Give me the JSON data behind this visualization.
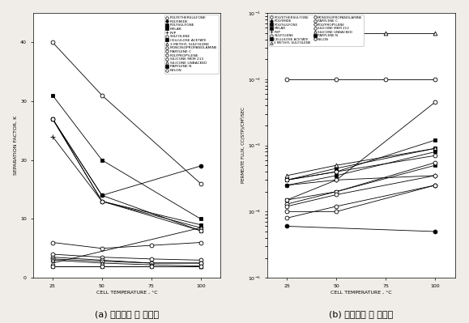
{
  "title_a": "(a) 혼합가스 중 선택도",
  "title_b": "(b) 혼합가스 중 투과도",
  "xlabel": "CELL TEMPERATURE , °C",
  "ylabel_a": "SEPARATION FACTOR, K",
  "ylabel_b": "PERMEATE FLUX, CC(STP)/CM²/SEC",
  "x_ticks": [
    25,
    50,
    75,
    100
  ],
  "x_range": [
    15,
    110
  ],
  "bg_color": "#f0ede8",
  "legend_a": [
    "POLYETHERSULFONE",
    "POLYIMIDE",
    "POLYSULFONE",
    "MYLAR",
    "PVP",
    "SULFOLENE",
    "CELLULOSE ACETATE",
    "3 METHYL SULFOLENE",
    "MONOISOPROPANOLAMINE",
    "PARYLENE C",
    "POLYPROPYLENE",
    "SILICONE MEM 213",
    "SILICONE UNBACKED",
    "PARYLENE N",
    "NYLON"
  ],
  "series_a": {
    "POLYETHERSULFONE": {
      "x": [
        25,
        50,
        100
      ],
      "y": [
        40,
        31,
        16
      ],
      "marker": "o",
      "filled": false
    },
    "POLYIMIDE": {
      "x": [
        25,
        50,
        100
      ],
      "y": [
        27,
        14,
        19
      ],
      "marker": "o",
      "filled": true
    },
    "POLYSULFONE": {
      "x": [
        25,
        50,
        100
      ],
      "y": [
        27,
        14,
        8
      ],
      "marker": "s",
      "filled": true
    },
    "MYLAR": {
      "x": [
        25,
        50,
        100
      ],
      "y": [
        31,
        20,
        10
      ],
      "marker": "s",
      "filled": true
    },
    "PVP": {
      "x": [
        25,
        50,
        100
      ],
      "y": [
        24,
        13,
        8.5
      ],
      "marker": "+",
      "filled": false
    },
    "SULFOLENE": {
      "x": [
        25,
        50,
        75,
        100
      ],
      "y": [
        6,
        5,
        5.5,
        6
      ],
      "marker": "o",
      "filled": false
    },
    "CELLULOSE ACETATE": {
      "x": [
        25,
        50,
        100
      ],
      "y": [
        27,
        13,
        9
      ],
      "marker": "s",
      "filled": true
    },
    "3 METHYL SULFOLENE": {
      "x": [
        25,
        100
      ],
      "y": [
        2.5,
        8.5
      ],
      "marker": "^",
      "filled": false
    },
    "MONOISOPROPANOLAMINE": {
      "x": [
        25,
        50,
        100
      ],
      "y": [
        27,
        13,
        8
      ],
      "marker": "o",
      "filled": false
    },
    "PARYLENE C": {
      "x": [
        25,
        50,
        75,
        100
      ],
      "y": [
        4,
        3.5,
        3.2,
        3.0
      ],
      "marker": "o",
      "filled": false
    },
    "POLYPROPYLENE": {
      "x": [
        25,
        50,
        75,
        100
      ],
      "y": [
        3.5,
        3.0,
        2.5,
        2.5
      ],
      "marker": "o",
      "filled": false
    },
    "SILICONE MEM 213": {
      "x": [
        25,
        50,
        75,
        100
      ],
      "y": [
        3.2,
        2.8,
        2.5,
        2.5
      ],
      "marker": "o",
      "filled": false
    },
    "SILICONE UNBACKED": {
      "x": [
        25,
        50,
        75,
        100
      ],
      "y": [
        3.0,
        2.5,
        2.2,
        2.0
      ],
      "marker": "^",
      "filled": false
    },
    "PARYLENE N": {
      "x": [
        25,
        50,
        75,
        100
      ],
      "y": [
        2.0,
        2.0,
        2.0,
        2.0
      ],
      "marker": "s",
      "filled": true
    },
    "NYLON": {
      "x": [
        25,
        50,
        75,
        100
      ],
      "y": [
        2.0,
        2.0,
        2.0,
        2.0
      ],
      "marker": "o",
      "filled": false
    }
  },
  "series_b": {
    "POLYETHERSULFONE": {
      "x": [
        25,
        50,
        100
      ],
      "y": [
        0.0001,
        0.0001,
        0.00025
      ],
      "marker": "o",
      "filled": false
    },
    "POLYIMIDE": {
      "x": [
        25,
        100
      ],
      "y": [
        6e-05,
        5e-05
      ],
      "marker": "o",
      "filled": true
    },
    "POLYSULFONE": {
      "x": [
        25,
        50,
        100
      ],
      "y": [
        0.00015,
        0.0002,
        0.0005
      ],
      "marker": "s",
      "filled": true
    },
    "MYLAR": {
      "x": [
        25,
        50,
        100
      ],
      "y": [
        0.0003,
        0.0004,
        0.0012
      ],
      "marker": "s",
      "filled": true
    },
    "PVP": {
      "x": [
        25,
        50,
        100
      ],
      "y": [
        0.00025,
        0.0003,
        0.00035
      ],
      "marker": "+",
      "filled": false
    },
    "SULFOLENE": {
      "x": [
        25,
        50,
        75,
        100
      ],
      "y": [
        0.01,
        0.01,
        0.01,
        0.01
      ],
      "marker": "o",
      "filled": false
    },
    "CELLULOSE ACETATE": {
      "x": [
        25,
        50,
        100
      ],
      "y": [
        0.0003,
        0.00045,
        0.0009
      ],
      "marker": "s",
      "filled": true
    },
    "3 METHYL SULFOLENE": {
      "x": [
        25,
        50,
        75,
        100
      ],
      "y": [
        0.05,
        0.05,
        0.05,
        0.05
      ],
      "marker": "^",
      "filled": false
    },
    "MONOISOPROPANOLAMINE": {
      "x": [
        25,
        50,
        100
      ],
      "y": [
        0.00015,
        0.0003,
        0.0045
      ],
      "marker": "o",
      "filled": false
    },
    "PARYLENE C": {
      "x": [
        25,
        50,
        100
      ],
      "y": [
        0.00013,
        0.0002,
        0.00055
      ],
      "marker": "o",
      "filled": false
    },
    "POLYPROPYLENE": {
      "x": [
        25,
        50,
        100
      ],
      "y": [
        8e-05,
        0.00012,
        0.00025
      ],
      "marker": "o",
      "filled": false
    },
    "SILICONE MEM 213": {
      "x": [
        25,
        50,
        100
      ],
      "y": [
        0.0003,
        0.0004,
        0.0007
      ],
      "marker": "o",
      "filled": false
    },
    "SILICONE UNBACKED": {
      "x": [
        25,
        50,
        100
      ],
      "y": [
        0.00035,
        0.0005,
        0.0009
      ],
      "marker": "^",
      "filled": false
    },
    "PARYLENE N": {
      "x": [
        25,
        50,
        100
      ],
      "y": [
        0.00025,
        0.00035,
        0.0008
      ],
      "marker": "s",
      "filled": true
    },
    "NYLON": {
      "x": [
        25,
        50,
        100
      ],
      "y": [
        0.00012,
        0.00018,
        0.00035
      ],
      "marker": "o",
      "filled": false
    }
  },
  "legend_b_left": [
    "POLYETHERSULFONE",
    "POLYIMIDE",
    "POLYSULFONE",
    "MYLAR",
    "PVP",
    "SULFOLENE",
    "CELLULOSE ACETATE"
  ],
  "legend_b_right": [
    "3 METHYL SULFOLENE",
    "MONOISOPROPANOLAMINE",
    "PARYLENE C",
    "POLYPROPYLENE",
    "SILICONE MEM 213",
    "SILICONE UNBACKED",
    "PARYLENE N",
    "NYLON"
  ]
}
